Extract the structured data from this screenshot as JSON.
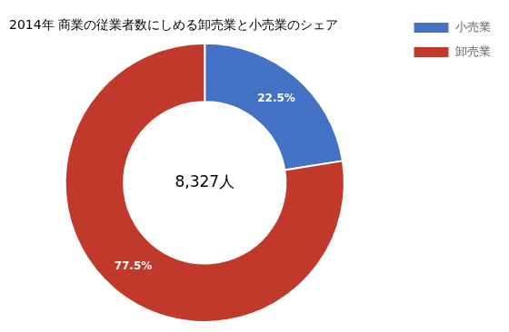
{
  "chart_data": {
    "type": "donut",
    "title": "2014年 商業の従業者数にしめる卸売業と小売業のシェア",
    "categories": [
      "小売業",
      "卸売業"
    ],
    "values": [
      22.5,
      77.5
    ],
    "value_labels": [
      "22.5%",
      "77.5%"
    ],
    "colors": [
      "#4472C4",
      "#C0392B"
    ],
    "center_text": "8,327人",
    "data_labels": true,
    "legend": "upper right"
  }
}
